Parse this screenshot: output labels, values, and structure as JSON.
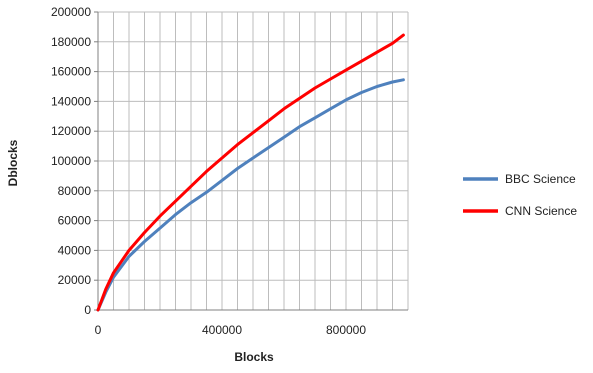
{
  "chart_data": {
    "type": "line",
    "xlabel": "Blocks",
    "ylabel": "Dblocks",
    "xlim": [
      0,
      1000000
    ],
    "ylim": [
      0,
      200000
    ],
    "x_ticks": [
      0,
      400000,
      800000
    ],
    "x_tick_labels": [
      "0",
      "400000",
      "800000"
    ],
    "y_ticks": [
      0,
      20000,
      40000,
      60000,
      80000,
      100000,
      120000,
      140000,
      160000,
      180000,
      200000
    ],
    "y_tick_labels": [
      "0",
      "20000",
      "40000",
      "60000",
      "80000",
      "100000",
      "120000",
      "140000",
      "160000",
      "180000",
      "200000"
    ],
    "grid": true,
    "legend_position": "right",
    "series": [
      {
        "name": "BBC Science",
        "color": "#4f81bd",
        "points": [
          [
            0,
            0
          ],
          [
            25000,
            12000
          ],
          [
            50000,
            22000
          ],
          [
            100000,
            36000
          ],
          [
            150000,
            46000
          ],
          [
            200000,
            55000
          ],
          [
            250000,
            64000
          ],
          [
            300000,
            72000
          ],
          [
            350000,
            79000
          ],
          [
            400000,
            87000
          ],
          [
            450000,
            95000
          ],
          [
            500000,
            102000
          ],
          [
            550000,
            109000
          ],
          [
            600000,
            116000
          ],
          [
            650000,
            123000
          ],
          [
            700000,
            129000
          ],
          [
            750000,
            135000
          ],
          [
            800000,
            141000
          ],
          [
            850000,
            146000
          ],
          [
            900000,
            150000
          ],
          [
            950000,
            153000
          ],
          [
            985000,
            154500
          ]
        ]
      },
      {
        "name": "CNN Science",
        "color": "#ff0000",
        "points": [
          [
            0,
            0
          ],
          [
            25000,
            14000
          ],
          [
            50000,
            25000
          ],
          [
            100000,
            40000
          ],
          [
            150000,
            52000
          ],
          [
            200000,
            63000
          ],
          [
            250000,
            73000
          ],
          [
            300000,
            83000
          ],
          [
            350000,
            93000
          ],
          [
            400000,
            102000
          ],
          [
            450000,
            111000
          ],
          [
            500000,
            119000
          ],
          [
            550000,
            127000
          ],
          [
            600000,
            135000
          ],
          [
            650000,
            142000
          ],
          [
            700000,
            149000
          ],
          [
            750000,
            155000
          ],
          [
            800000,
            161000
          ],
          [
            850000,
            167000
          ],
          [
            900000,
            173000
          ],
          [
            950000,
            179000
          ],
          [
            985000,
            184500
          ]
        ]
      }
    ]
  }
}
